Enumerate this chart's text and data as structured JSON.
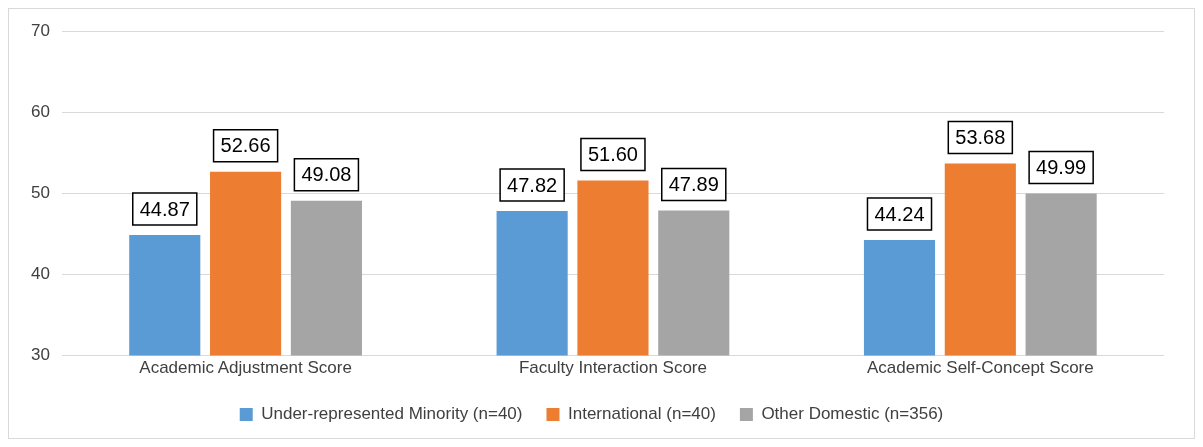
{
  "chart_data": {
    "type": "bar",
    "categories": [
      "Academic Adjustment Score",
      "Faculty Interaction Score",
      "Academic Self-Concept Score"
    ],
    "series": [
      {
        "name": "Under-represented Minority (n=40)",
        "color": "#5b9bd5",
        "values": [
          44.87,
          47.82,
          44.24
        ],
        "value_labels": [
          "44.87",
          "47.82",
          "44.24"
        ]
      },
      {
        "name": "International (n=40)",
        "color": "#ed7d31",
        "values": [
          52.66,
          51.6,
          53.68
        ],
        "value_labels": [
          "52.66",
          "51.60",
          "53.68"
        ]
      },
      {
        "name": "Other Domestic (n=356)",
        "color": "#a5a5a5",
        "values": [
          49.08,
          47.89,
          49.99
        ],
        "value_labels": [
          "49.08",
          "47.89",
          "49.99"
        ]
      }
    ],
    "ylim": [
      30,
      70
    ],
    "yticks": [
      30,
      40,
      50,
      60,
      70
    ],
    "grid": "y",
    "legend": "bottom"
  }
}
